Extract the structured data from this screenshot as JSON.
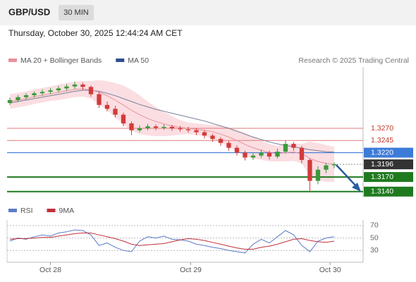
{
  "header": {
    "symbol": "GBP/USD",
    "timeframe": "30 MIN",
    "date": "Thursday, October 30, 2025 12:44:24 AM CET"
  },
  "chart_data": [
    {
      "type": "candlestick",
      "credit": "Research © 2025 Trading Central",
      "up_color": "#3a9a3a",
      "down_color": "#d33b3b",
      "xlim": [
        -0.35,
        43.57
      ],
      "ylim": [
        1.3131,
        1.3396
      ],
      "candles": [
        [
          1.3322,
          1.3333,
          1.3318,
          1.3328
        ],
        [
          1.3328,
          1.3338,
          1.3324,
          1.3334
        ],
        [
          1.3334,
          1.3342,
          1.3329,
          1.3338
        ],
        [
          1.3338,
          1.3346,
          1.3333,
          1.3342
        ],
        [
          1.3342,
          1.335,
          1.3337,
          1.3345
        ],
        [
          1.3345,
          1.3353,
          1.334,
          1.3348
        ],
        [
          1.3348,
          1.3357,
          1.3344,
          1.3352
        ],
        [
          1.3352,
          1.3361,
          1.3347,
          1.3356
        ],
        [
          1.3356,
          1.3366,
          1.3351,
          1.336
        ],
        [
          1.336,
          1.3364,
          1.3349,
          1.3355
        ],
        [
          1.3355,
          1.3358,
          1.3335,
          1.334
        ],
        [
          1.334,
          1.3344,
          1.3312,
          1.3318
        ],
        [
          1.3318,
          1.3325,
          1.3305,
          1.331
        ],
        [
          1.331,
          1.3316,
          1.3292,
          1.3298
        ],
        [
          1.3298,
          1.3302,
          1.3274,
          1.328
        ],
        [
          1.328,
          1.3284,
          1.3256,
          1.3266
        ],
        [
          1.3266,
          1.3276,
          1.3262,
          1.327
        ],
        [
          1.327,
          1.3279,
          1.3266,
          1.3274
        ],
        [
          1.3274,
          1.3278,
          1.3266,
          1.3271
        ],
        [
          1.3271,
          1.3278,
          1.3267,
          1.3273
        ],
        [
          1.3273,
          1.3277,
          1.3265,
          1.327
        ],
        [
          1.327,
          1.3275,
          1.3263,
          1.3268
        ],
        [
          1.3268,
          1.3273,
          1.3261,
          1.3266
        ],
        [
          1.3266,
          1.327,
          1.3256,
          1.3262
        ],
        [
          1.3262,
          1.3266,
          1.3249,
          1.3255
        ],
        [
          1.3255,
          1.3259,
          1.3242,
          1.3248
        ],
        [
          1.3248,
          1.3252,
          1.3234,
          1.324
        ],
        [
          1.324,
          1.3244,
          1.3224,
          1.323
        ],
        [
          1.323,
          1.3235,
          1.3214,
          1.322
        ],
        [
          1.322,
          1.3224,
          1.3204,
          1.321
        ],
        [
          1.321,
          1.322,
          1.3205,
          1.3214
        ],
        [
          1.3214,
          1.3226,
          1.3209,
          1.322
        ],
        [
          1.322,
          1.3224,
          1.3206,
          1.3212
        ],
        [
          1.3212,
          1.3228,
          1.3208,
          1.3222
        ],
        [
          1.3222,
          1.3245,
          1.3218,
          1.3238
        ],
        [
          1.3238,
          1.3242,
          1.3224,
          1.323
        ],
        [
          1.323,
          1.3234,
          1.3198,
          1.3205
        ],
        [
          1.3205,
          1.3208,
          1.314,
          1.3162
        ],
        [
          1.3162,
          1.3192,
          1.3155,
          1.3185
        ],
        [
          1.3185,
          1.3199,
          1.3178,
          1.3194
        ],
        [
          1.3194,
          1.32,
          1.3188,
          1.3196
        ]
      ],
      "series": [
        {
          "name": "MA 20 + Bollinger Bands",
          "color": "#e8909c",
          "band_color": "#f9d3d8",
          "values": [
            1.3325,
            1.3328,
            1.3331,
            1.3335,
            1.3338,
            1.3341,
            1.3344,
            1.3347,
            1.335,
            1.3351,
            1.3349,
            1.3344,
            1.3337,
            1.3328,
            1.3318,
            1.3307,
            1.3298,
            1.329,
            1.3284,
            1.3279,
            1.3275,
            1.3272,
            1.327,
            1.3268,
            1.3266,
            1.3263,
            1.3258,
            1.3252,
            1.3245,
            1.3237,
            1.323,
            1.3225,
            1.322,
            1.3218,
            1.322,
            1.3221,
            1.3218,
            1.3208,
            1.3202,
            1.3198,
            1.3196
          ],
          "upper": [
            1.334,
            1.3343,
            1.3346,
            1.335,
            1.3353,
            1.3356,
            1.336,
            1.3363,
            1.3366,
            1.3367,
            1.3367,
            1.3369,
            1.3367,
            1.3363,
            1.3358,
            1.3349,
            1.3338,
            1.3325,
            1.3314,
            1.3304,
            1.3295,
            1.3287,
            1.3282,
            1.328,
            1.3278,
            1.3277,
            1.3275,
            1.3272,
            1.3267,
            1.3261,
            1.3252,
            1.3245,
            1.3238,
            1.3234,
            1.3238,
            1.3239,
            1.3238,
            1.3243,
            1.324,
            1.3236,
            1.3232
          ],
          "lower": [
            1.331,
            1.3313,
            1.3316,
            1.332,
            1.3323,
            1.3326,
            1.3328,
            1.3331,
            1.3334,
            1.3335,
            1.3331,
            1.3319,
            1.3307,
            1.3293,
            1.3278,
            1.3265,
            1.3258,
            1.3255,
            1.3254,
            1.3254,
            1.3255,
            1.3257,
            1.3258,
            1.3256,
            1.3254,
            1.3249,
            1.3241,
            1.3232,
            1.3223,
            1.3213,
            1.3208,
            1.3205,
            1.3202,
            1.3202,
            1.3202,
            1.3203,
            1.3198,
            1.3173,
            1.3164,
            1.316,
            1.316
          ]
        },
        {
          "name": "MA 50",
          "color": "#2f4f8f",
          "line_color": "#7a7f9a",
          "values": [
            1.3322,
            1.3325,
            1.3328,
            1.3331,
            1.3334,
            1.3337,
            1.334,
            1.3343,
            1.3346,
            1.3348,
            1.3348,
            1.3346,
            1.3342,
            1.3337,
            1.3331,
            1.3325,
            1.3319,
            1.3314,
            1.3309,
            1.3305,
            1.3301,
            1.3297,
            1.3293,
            1.3289,
            1.3285,
            1.328,
            1.3275,
            1.327,
            1.3264,
            1.3258,
            1.3252,
            1.3247,
            1.3242,
            1.3238,
            1.3235,
            1.3232,
            1.3229,
            1.3226,
            1.3224,
            1.3222,
            1.3221
          ]
        }
      ],
      "levels": [
        {
          "value": 1.327,
          "label": "1.3270",
          "color": "#e07a7a",
          "width": 1,
          "boxed": false,
          "dotted": false
        },
        {
          "value": 1.3245,
          "label": "1.3245",
          "color": "#e07a7a",
          "width": 1,
          "boxed": false,
          "dotted": false
        },
        {
          "value": 1.322,
          "label": "1.3220",
          "color": "#3d7bd9",
          "width": 1.2,
          "boxed": true,
          "dotted": false
        },
        {
          "value": 1.3196,
          "label": "1.3196",
          "color": "#333333",
          "width": 1,
          "boxed": true,
          "dotted": true
        },
        {
          "value": 1.317,
          "label": "1.3170",
          "color": "#1f7a1f",
          "width": 2,
          "boxed": true,
          "dotted": false
        },
        {
          "value": 1.314,
          "label": "1.3140",
          "color": "#1f7a1f",
          "width": 2,
          "boxed": true,
          "dotted": false
        }
      ]
    },
    {
      "type": "line",
      "xlim": [
        -0.35,
        43.57
      ],
      "ylim": [
        11,
        79
      ],
      "yticks": [
        70,
        50,
        30
      ],
      "xticks": [
        {
          "value": 5,
          "label": "Oct 28"
        },
        {
          "value": 22.3,
          "label": "Oct 29"
        },
        {
          "value": 39.5,
          "label": "Oct 30"
        }
      ],
      "series": [
        {
          "name": "RSI",
          "color": "#5b7bc6",
          "values": [
            45,
            50,
            48,
            52,
            55,
            53,
            58,
            60,
            63,
            62,
            55,
            38,
            42,
            35,
            30,
            28,
            45,
            52,
            50,
            53,
            48,
            47,
            45,
            40,
            38,
            35,
            33,
            30,
            28,
            26,
            40,
            48,
            42,
            52,
            62,
            55,
            38,
            28,
            45,
            50,
            52
          ]
        },
        {
          "name": "9MA",
          "color": "#c0303a",
          "values": [
            48,
            49,
            49,
            50,
            51,
            51,
            53,
            55,
            57,
            58,
            58,
            55,
            52,
            49,
            45,
            40,
            38,
            39,
            40,
            41,
            44,
            47,
            49,
            48,
            46,
            43,
            40,
            37,
            34,
            32,
            32,
            35,
            37,
            40,
            44,
            48,
            49,
            46,
            44,
            43,
            45
          ]
        }
      ]
    }
  ]
}
